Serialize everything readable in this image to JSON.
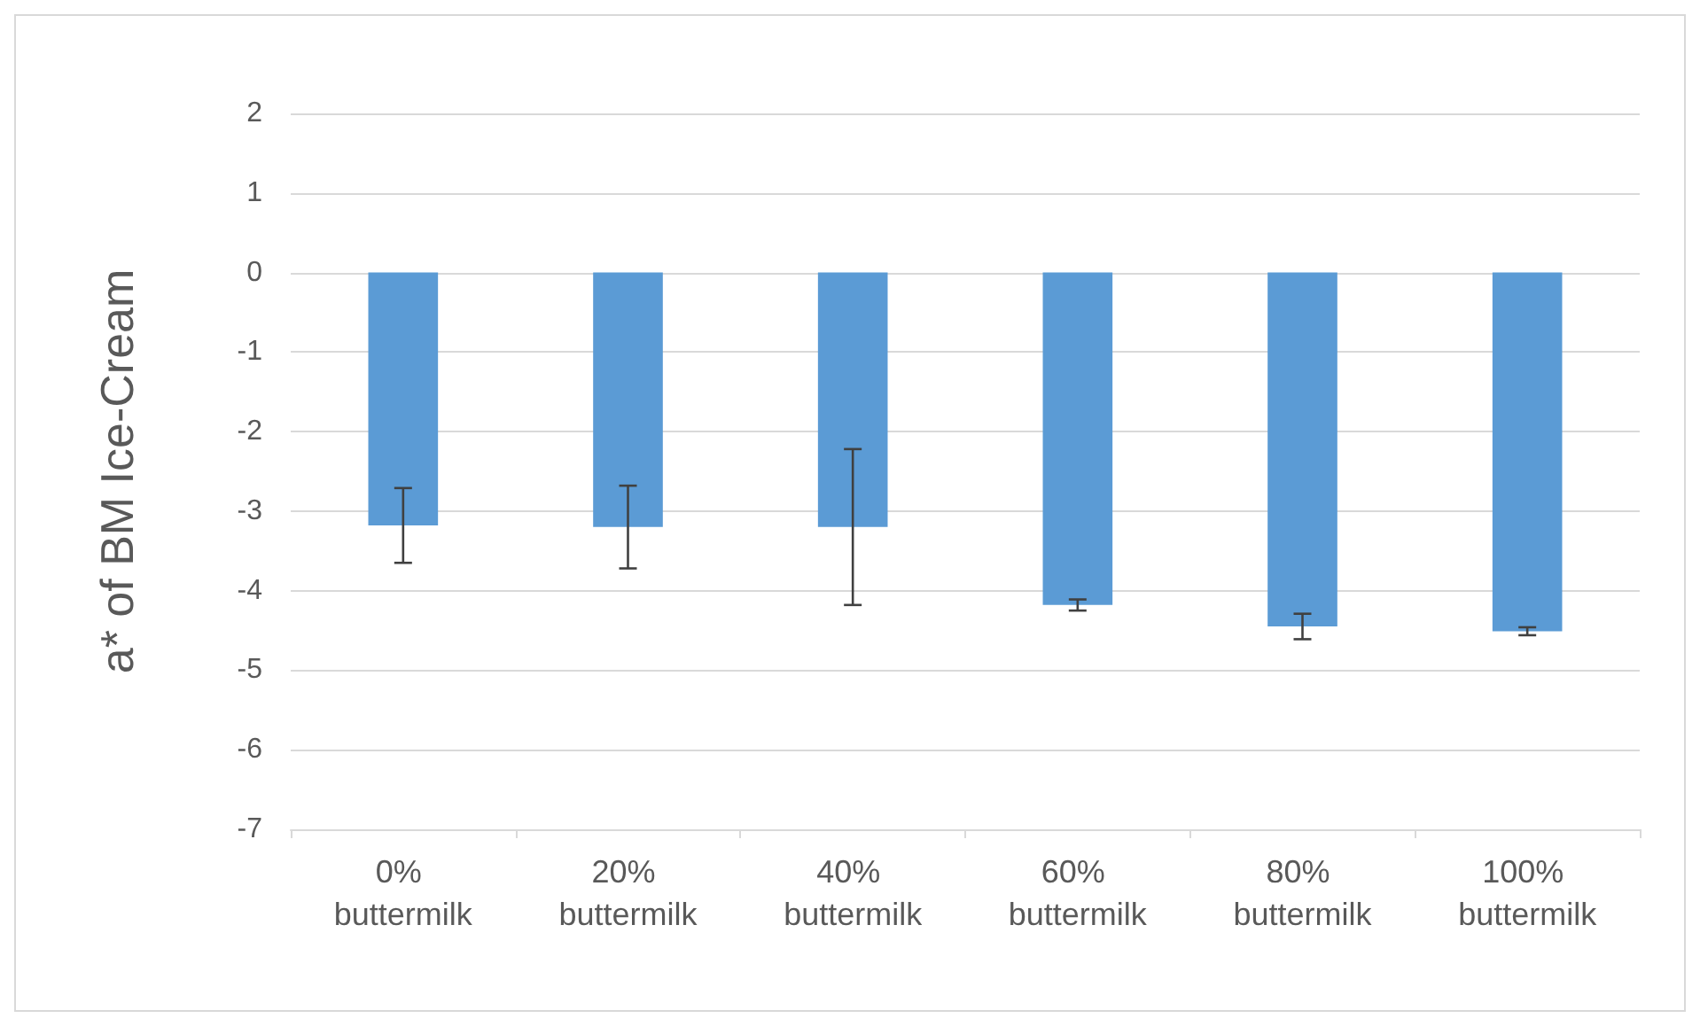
{
  "chart_data": {
    "type": "bar",
    "ylabel": "a* of BM Ice-Cream",
    "categories": [
      "0% buttermilk",
      "20% buttermilk",
      "40% buttermilk",
      "60% buttermilk",
      "80% buttermilk",
      "100% buttermilk"
    ],
    "values": [
      -3.18,
      -3.2,
      -3.2,
      -4.18,
      -4.45,
      -4.51
    ],
    "errors": [
      0.47,
      0.52,
      0.98,
      0.07,
      0.16,
      0.05
    ],
    "color": "#5b9bd5",
    "ylim": [
      -7,
      2
    ],
    "yticks": [
      -7,
      -6,
      -5,
      -4,
      -3,
      -2,
      -1,
      0,
      1,
      2
    ],
    "grid": "y"
  }
}
